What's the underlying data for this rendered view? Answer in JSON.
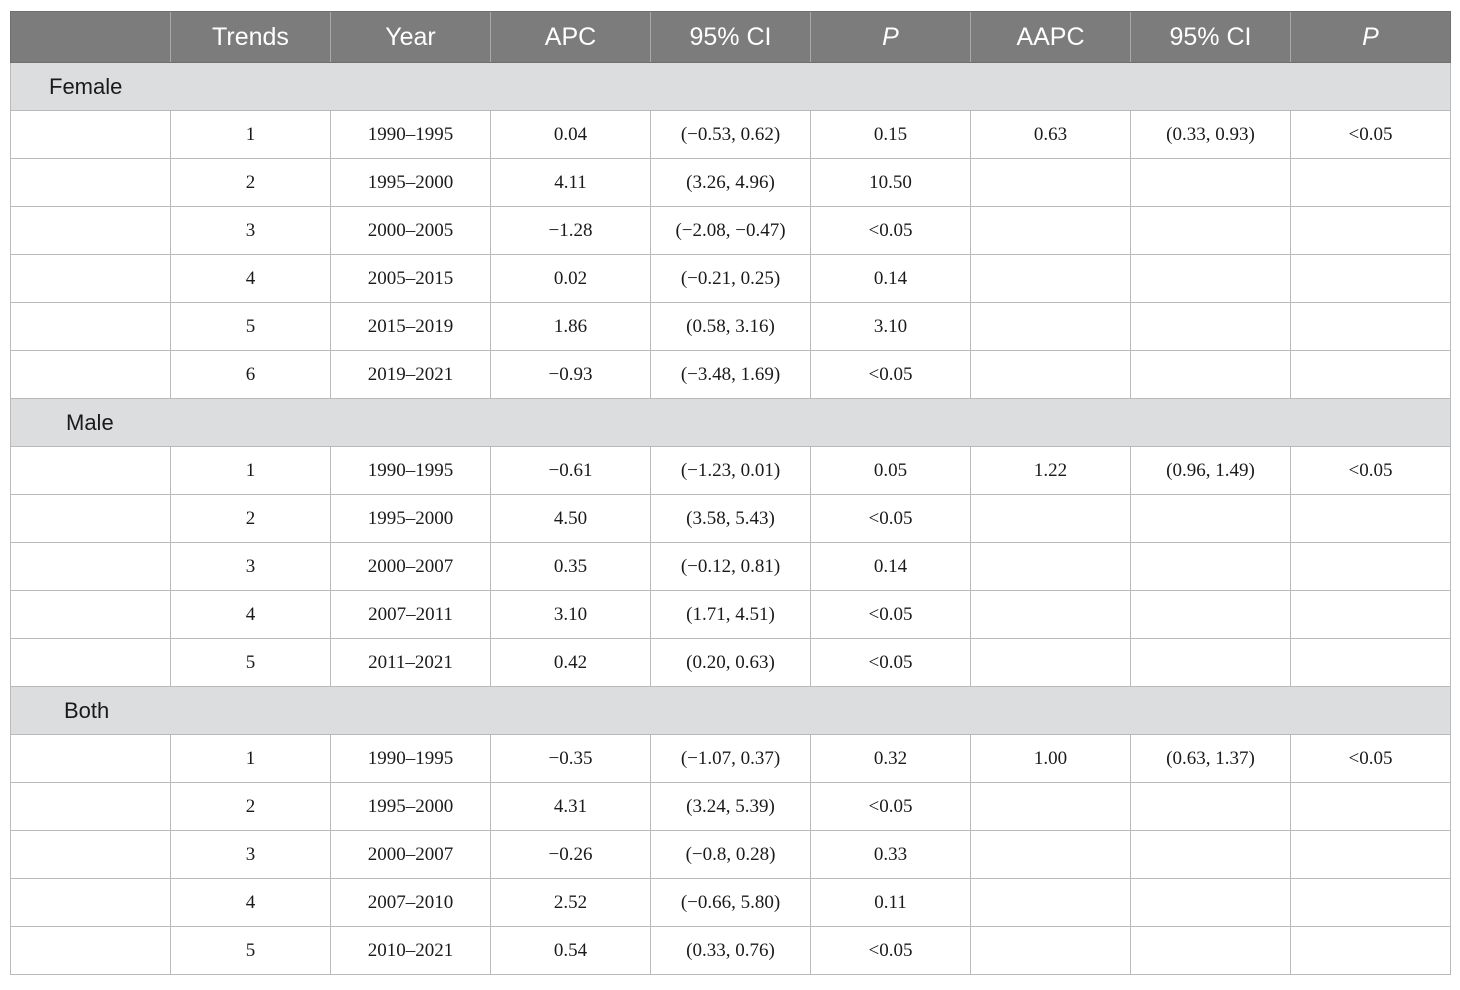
{
  "headers": [
    "",
    "Trends",
    "Year",
    "APC",
    "95% CI",
    "P",
    "AAPC",
    "95% CI",
    "P"
  ],
  "groups": [
    {
      "label": "Female",
      "rows": [
        [
          "",
          "1",
          "1990–1995",
          "0.04",
          "(−0.53, 0.62)",
          "0.15",
          "0.63",
          "(0.33, 0.93)",
          "<0.05"
        ],
        [
          "",
          "2",
          "1995–2000",
          "4.11",
          "(3.26, 4.96)",
          "10.50",
          "",
          "",
          ""
        ],
        [
          "",
          "3",
          "2000–2005",
          "−1.28",
          "(−2.08, −0.47)",
          "<0.05",
          "",
          "",
          ""
        ],
        [
          "",
          "4",
          "2005–2015",
          "0.02",
          "(−0.21, 0.25)",
          "0.14",
          "",
          "",
          ""
        ],
        [
          "",
          "5",
          "2015–2019",
          "1.86",
          "(0.58, 3.16)",
          "3.10",
          "",
          "",
          ""
        ],
        [
          "",
          "6",
          "2019–2021",
          "−0.93",
          "(−3.48, 1.69)",
          "<0.05",
          "",
          "",
          ""
        ]
      ]
    },
    {
      "label": "Male",
      "rows": [
        [
          "",
          "1",
          "1990–1995",
          "−0.61",
          "(−1.23, 0.01)",
          "0.05",
          "1.22",
          "(0.96, 1.49)",
          "<0.05"
        ],
        [
          "",
          "2",
          "1995–2000",
          "4.50",
          "(3.58, 5.43)",
          "<0.05",
          "",
          "",
          ""
        ],
        [
          "",
          "3",
          "2000–2007",
          "0.35",
          "(−0.12, 0.81)",
          "0.14",
          "",
          "",
          ""
        ],
        [
          "",
          "4",
          "2007–2011",
          "3.10",
          "(1.71, 4.51)",
          "<0.05",
          "",
          "",
          ""
        ],
        [
          "",
          "5",
          "2011–2021",
          "0.42",
          "(0.20, 0.63)",
          "<0.05",
          "",
          "",
          ""
        ]
      ]
    },
    {
      "label": "Both",
      "rows": [
        [
          "",
          "1",
          "1990–1995",
          "−0.35",
          "(−1.07, 0.37)",
          "0.32",
          "1.00",
          "(0.63, 1.37)",
          "<0.05"
        ],
        [
          "",
          "2",
          "1995–2000",
          "4.31",
          "(3.24, 5.39)",
          "<0.05",
          "",
          "",
          ""
        ],
        [
          "",
          "3",
          "2000–2007",
          "−0.26",
          "(−0.8, 0.28)",
          "0.33",
          "",
          "",
          ""
        ],
        [
          "",
          "4",
          "2007–2010",
          "2.52",
          "(−0.66, 5.80)",
          "0.11",
          "",
          "",
          ""
        ],
        [
          "",
          "5",
          "2010–2021",
          "0.54",
          "(0.33, 0.76)",
          "<0.05",
          "",
          "",
          ""
        ]
      ]
    }
  ]
}
